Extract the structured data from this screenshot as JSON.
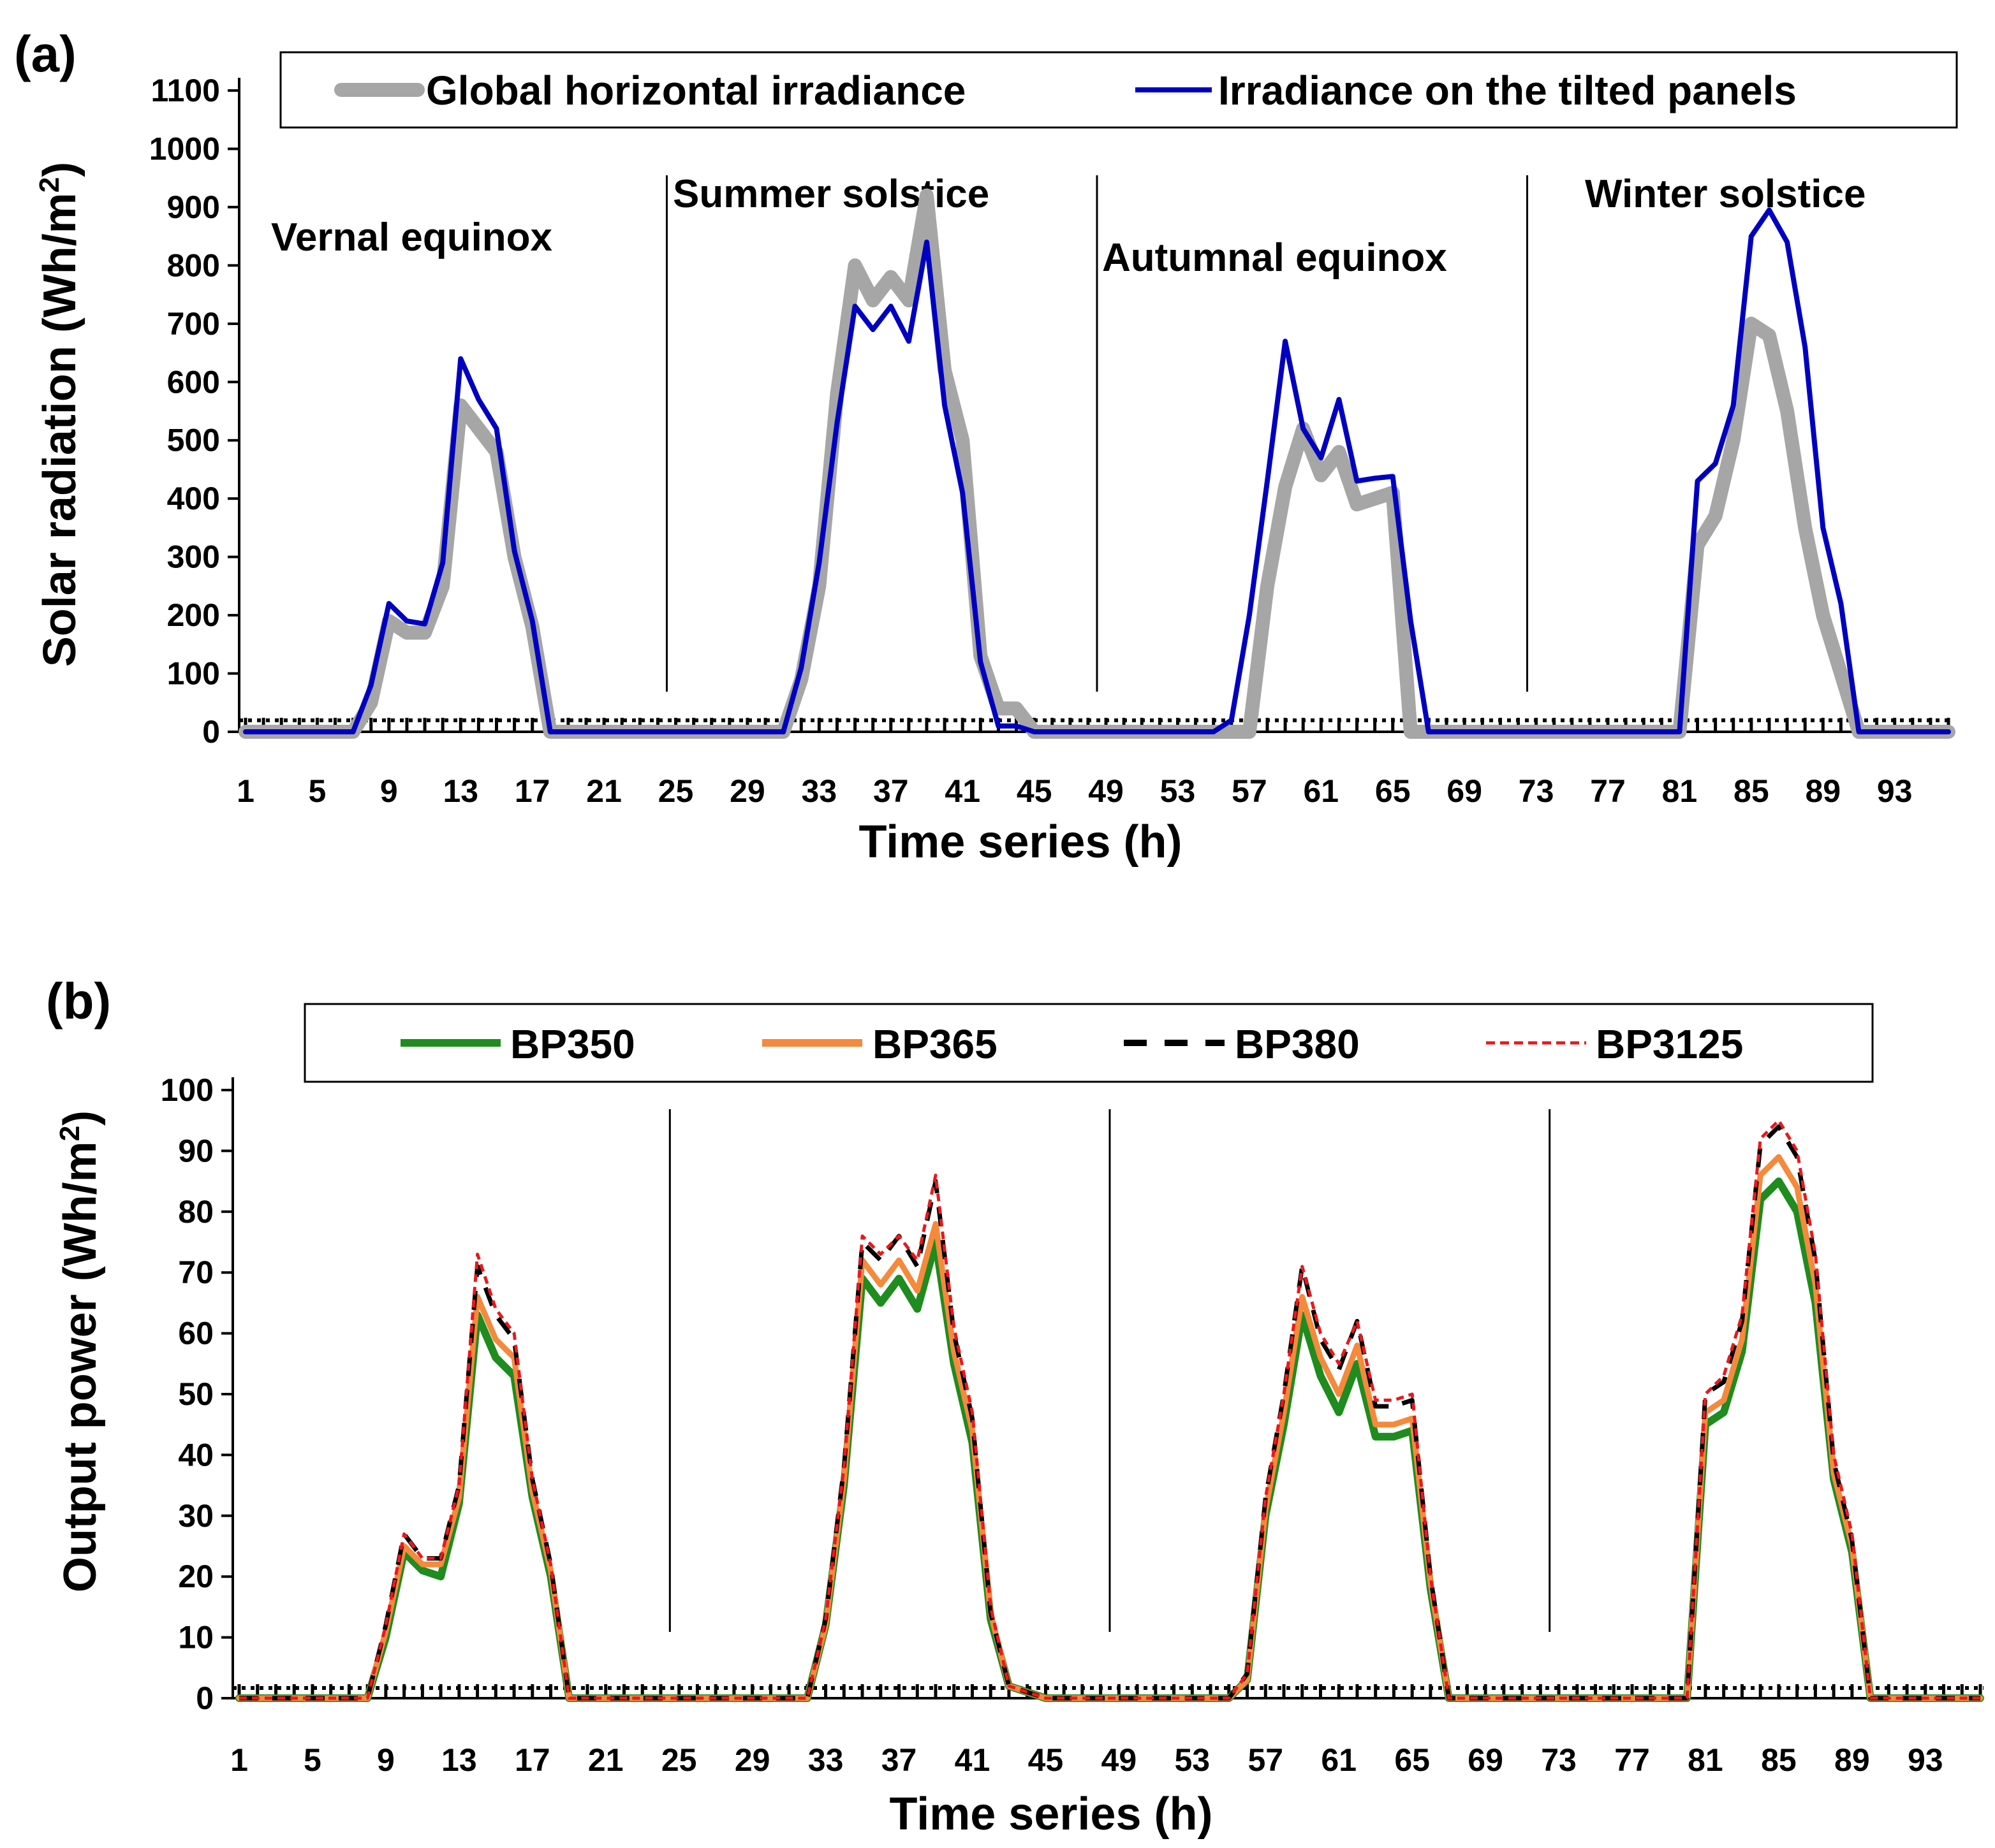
{
  "chart_data": [
    {
      "panel": "(a)",
      "type": "line",
      "xlabel": "Time series (h)",
      "ylabel": "Solar radiation (Wh/m2)",
      "ylabel_main": "Solar radiation (Wh/m",
      "ylabel_sup": "2",
      "ylabel_end": ")",
      "ylim": [
        0,
        1100
      ],
      "yticks": [
        "0",
        "100",
        "200",
        "300",
        "400",
        "500",
        "600",
        "700",
        "800",
        "900",
        "1000",
        "1100"
      ],
      "xlim": [
        1,
        96
      ],
      "xticks": [
        "1",
        "5",
        "9",
        "13",
        "17",
        "21",
        "25",
        "29",
        "33",
        "37",
        "41",
        "45",
        "49",
        "53",
        "57",
        "61",
        "65",
        "69",
        "73",
        "77",
        "81",
        "85",
        "89",
        "93"
      ],
      "season_labels": [
        "Vernal equinox",
        "Summer solstice",
        "Autumnal equinox",
        "Winter solstice"
      ],
      "period_dividers_at_hour": [
        24.5,
        48.5,
        72.5
      ],
      "series": [
        {
          "name": "Global horizontal irradiance",
          "color": "#a6a6a6",
          "values": [
            0,
            0,
            0,
            0,
            0,
            0,
            0,
            50,
            190,
            170,
            170,
            250,
            560,
            520,
            480,
            300,
            180,
            0,
            0,
            0,
            0,
            0,
            0,
            0,
            0,
            0,
            0,
            0,
            0,
            0,
            0,
            90,
            250,
            580,
            800,
            740,
            780,
            740,
            920,
            620,
            500,
            130,
            40,
            40,
            0,
            0,
            0,
            0,
            0,
            0,
            0,
            0,
            0,
            0,
            0,
            0,
            0,
            250,
            420,
            520,
            440,
            480,
            390,
            400,
            410,
            0,
            0,
            0,
            0,
            0,
            0,
            0,
            0,
            0,
            0,
            0,
            0,
            0,
            0,
            0,
            0,
            320,
            370,
            500,
            700,
            680,
            550,
            350,
            200,
            100,
            0,
            0,
            0,
            0,
            0,
            0
          ]
        },
        {
          "name": "Irradiance on the tilted panels",
          "color": "#0000c0",
          "values": [
            0,
            0,
            0,
            0,
            0,
            0,
            0,
            80,
            220,
            190,
            185,
            290,
            640,
            570,
            520,
            310,
            190,
            0,
            0,
            0,
            0,
            0,
            0,
            0,
            0,
            0,
            0,
            0,
            0,
            0,
            0,
            110,
            290,
            530,
            730,
            690,
            730,
            670,
            840,
            560,
            410,
            120,
            10,
            10,
            0,
            0,
            0,
            0,
            0,
            0,
            0,
            0,
            0,
            0,
            0,
            20,
            200,
            430,
            670,
            520,
            470,
            570,
            430,
            435,
            438,
            190,
            0,
            0,
            0,
            0,
            0,
            0,
            0,
            0,
            0,
            0,
            0,
            0,
            0,
            0,
            0,
            430,
            460,
            560,
            850,
            895,
            840,
            660,
            350,
            220,
            0,
            0,
            0,
            0,
            0,
            0
          ]
        }
      ]
    },
    {
      "panel": "(b)",
      "type": "line",
      "xlabel": "Time series (h)",
      "ylabel": "Output power (Wh/m2)",
      "ylabel_main": "Output power (Wh/m",
      "ylabel_sup": "2",
      "ylabel_end": ")",
      "ylim": [
        0,
        100
      ],
      "yticks": [
        "0",
        "10",
        "20",
        "30",
        "40",
        "50",
        "60",
        "70",
        "80",
        "90",
        "100"
      ],
      "xlim": [
        1,
        96
      ],
      "xticks": [
        "1",
        "5",
        "9",
        "13",
        "17",
        "21",
        "25",
        "29",
        "33",
        "37",
        "41",
        "45",
        "49",
        "53",
        "57",
        "61",
        "65",
        "69",
        "73",
        "77",
        "81",
        "85",
        "89",
        "93"
      ],
      "period_dividers_at_hour": [
        24.5,
        48.5,
        72.5
      ],
      "series": [
        {
          "name": "BP350",
          "color": "#1e8c1e",
          "values": [
            0,
            0,
            0,
            0,
            0,
            0,
            0,
            0,
            10,
            24,
            21,
            20,
            32,
            63,
            56,
            53,
            33,
            20,
            0,
            0,
            0,
            0,
            0,
            0,
            0,
            0,
            0,
            0,
            0,
            0,
            0,
            0,
            12,
            35,
            69,
            65,
            69,
            64,
            75,
            55,
            42,
            13,
            2,
            1,
            0,
            0,
            0,
            0,
            0,
            0,
            0,
            0,
            0,
            0,
            0,
            3,
            30,
            45,
            63,
            53,
            47,
            55,
            43,
            43,
            44,
            18,
            0,
            0,
            0,
            0,
            0,
            0,
            0,
            0,
            0,
            0,
            0,
            0,
            0,
            0,
            45,
            47,
            57,
            82,
            85,
            80,
            65,
            36,
            24,
            0,
            0,
            0,
            0,
            0,
            0,
            0
          ]
        },
        {
          "name": "BP365",
          "color": "#f5893c",
          "values": [
            0,
            0,
            0,
            0,
            0,
            0,
            0,
            0,
            11,
            25,
            22,
            22,
            33,
            66,
            59,
            56,
            34,
            21,
            0,
            0,
            0,
            0,
            0,
            0,
            0,
            0,
            0,
            0,
            0,
            0,
            0,
            0,
            12,
            36,
            72,
            68,
            72,
            67,
            78,
            57,
            44,
            14,
            2,
            1,
            0,
            0,
            0,
            0,
            0,
            0,
            0,
            0,
            0,
            0,
            0,
            3,
            31,
            47,
            66,
            56,
            50,
            58,
            45,
            45,
            46,
            19,
            0,
            0,
            0,
            0,
            0,
            0,
            0,
            0,
            0,
            0,
            0,
            0,
            0,
            0,
            47,
            49,
            59,
            86,
            89,
            84,
            68,
            37,
            25,
            0,
            0,
            0,
            0,
            0,
            0,
            0
          ]
        },
        {
          "name": "BP380",
          "color": "#000000",
          "values": [
            0,
            0,
            0,
            0,
            0,
            0,
            0,
            0,
            12,
            27,
            23,
            23,
            35,
            71,
            63,
            59,
            36,
            22,
            0,
            0,
            0,
            0,
            0,
            0,
            0,
            0,
            0,
            0,
            0,
            0,
            0,
            0,
            13,
            38,
            75,
            72,
            76,
            71,
            85,
            60,
            46,
            14,
            2,
            1,
            0,
            0,
            0,
            0,
            0,
            0,
            0,
            0,
            0,
            0,
            0,
            4,
            33,
            50,
            71,
            59,
            54,
            62,
            48,
            48,
            49,
            20,
            0,
            0,
            0,
            0,
            0,
            0,
            0,
            0,
            0,
            0,
            0,
            0,
            0,
            0,
            50,
            52,
            62,
            91,
            94,
            89,
            72,
            39,
            26,
            0,
            0,
            0,
            0,
            0,
            0,
            0
          ]
        },
        {
          "name": "BP3125",
          "color": "#e8191e",
          "values": [
            0,
            0,
            0,
            0,
            0,
            0,
            0,
            0,
            12,
            27,
            23,
            23,
            35,
            73,
            64,
            60,
            36,
            22,
            0,
            0,
            0,
            0,
            0,
            0,
            0,
            0,
            0,
            0,
            0,
            0,
            0,
            0,
            13,
            38,
            76,
            73,
            76,
            72,
            86,
            61,
            47,
            15,
            2,
            1,
            0,
            0,
            0,
            0,
            0,
            0,
            0,
            0,
            0,
            0,
            0,
            4,
            33,
            50,
            71,
            60,
            55,
            62,
            49,
            49,
            50,
            20,
            0,
            0,
            0,
            0,
            0,
            0,
            0,
            0,
            0,
            0,
            0,
            0,
            0,
            0,
            50,
            53,
            63,
            92,
            95,
            90,
            73,
            40,
            27,
            0,
            0,
            0,
            0,
            0,
            0,
            0
          ]
        }
      ]
    }
  ]
}
